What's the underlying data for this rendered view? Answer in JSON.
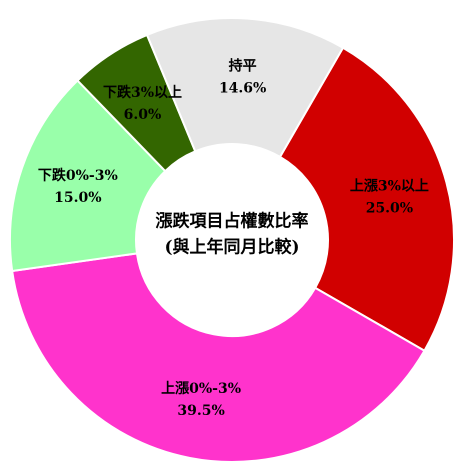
{
  "chart_data": {
    "type": "donut",
    "center_text": [
      "漲跌項目占權數比率",
      "(與上年同月比較)"
    ],
    "categories": [
      "上漲3%以上",
      "上漲0%-3%",
      "下跌0%-3%",
      "下跌3%以上",
      "持平"
    ],
    "values": [
      25.0,
      39.5,
      15.0,
      6.0,
      14.6
    ],
    "value_labels": [
      "25.0%",
      "39.5%",
      "15.0%",
      "6.0%",
      "14.6%"
    ],
    "colors": [
      "#d10000",
      "#ff33cc",
      "#99ffaa",
      "#336600",
      "#e6e6e6"
    ]
  }
}
